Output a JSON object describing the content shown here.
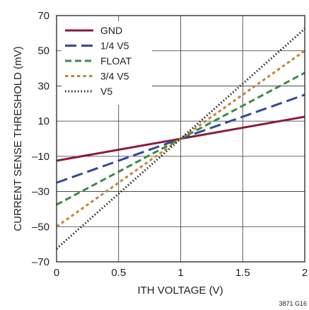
{
  "chart_data": {
    "type": "line",
    "xlabel": "ITH VOLTAGE (V)",
    "ylabel": "CURRENT SENSE THRESHOLD (mV)",
    "xlim": [
      0,
      2
    ],
    "ylim": [
      -70,
      70
    ],
    "x_ticks": [
      0,
      0.5,
      1,
      1.5,
      2
    ],
    "x_tick_labels": [
      "0",
      "0.5",
      "1",
      "1.5",
      "2"
    ],
    "y_ticks": [
      -70,
      -50,
      -30,
      -10,
      10,
      30,
      50,
      70
    ],
    "y_tick_labels": [
      "–70",
      "–50",
      "–30",
      "–10",
      "10",
      "30",
      "50",
      "70"
    ],
    "grid": true,
    "legend_position": "top-left",
    "series": [
      {
        "name": "GND",
        "color": "#8b1a3a",
        "style": "solid",
        "x": [
          0,
          2
        ],
        "y": [
          -12.5,
          12.5
        ]
      },
      {
        "name": "1/4 V5",
        "color": "#34489a",
        "style": "long-dash",
        "x": [
          0,
          2
        ],
        "y": [
          -25,
          25
        ]
      },
      {
        "name": "FLOAT",
        "color": "#3a8a44",
        "style": "dash",
        "x": [
          0,
          2
        ],
        "y": [
          -37.5,
          37.5
        ]
      },
      {
        "name": "3/4 V5",
        "color": "#c4833a",
        "style": "short-dash",
        "x": [
          0,
          2
        ],
        "y": [
          -50,
          50
        ]
      },
      {
        "name": "V5",
        "color": "#222222",
        "style": "dotted",
        "x": [
          0,
          2
        ],
        "y": [
          -62.5,
          62.5
        ]
      }
    ]
  },
  "figure_id": "3871 G16"
}
